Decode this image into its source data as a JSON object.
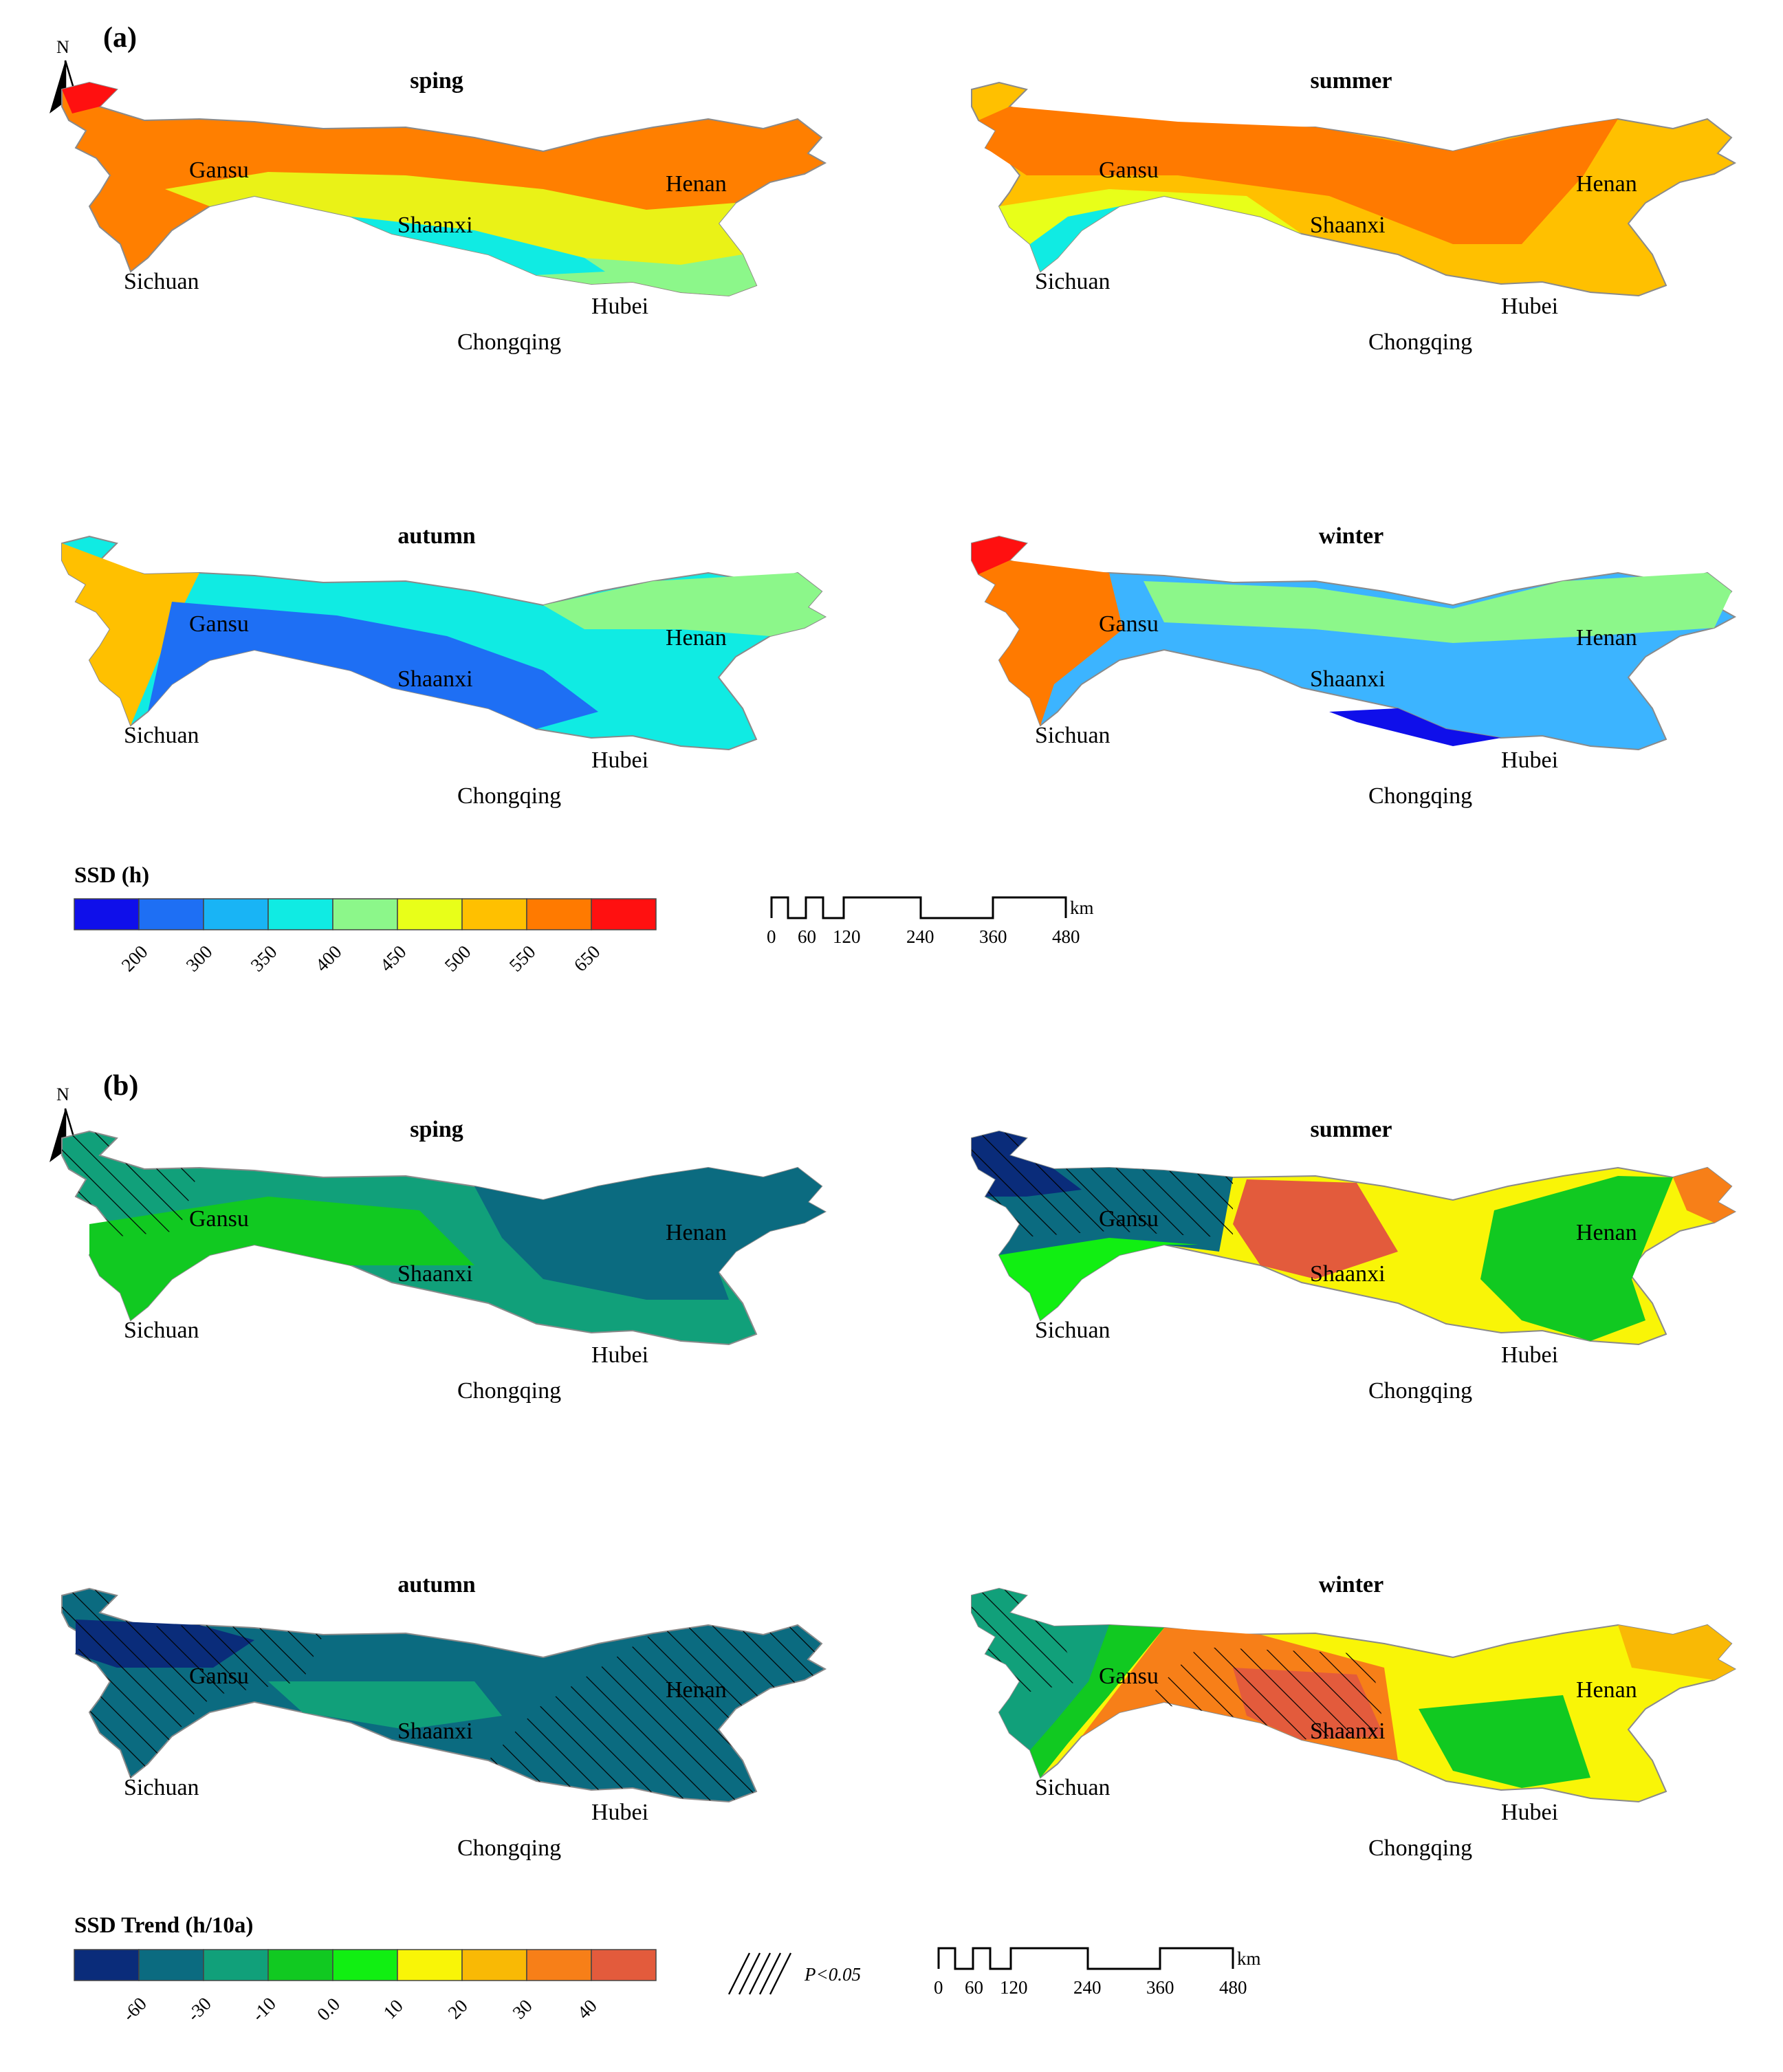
{
  "north_label": "N",
  "panel_a": {
    "label": "(a)",
    "maps": [
      {
        "season": "sping",
        "fill": "#ff7f00"
      },
      {
        "season": "summer",
        "fill": "#ff9400"
      },
      {
        "season": "autumn",
        "fill": "#28dce6"
      },
      {
        "season": "winter",
        "fill": "#3cb4ff"
      }
    ],
    "legend": {
      "title": "SSD (h)",
      "colors": [
        "#0f0fea",
        "#1e6ff4",
        "#19b4f5",
        "#10ebe3",
        "#8cf78a",
        "#e8ff19",
        "#ffc000",
        "#ff7a00",
        "#ff1010"
      ],
      "ticks": [
        "200",
        "300",
        "350",
        "400",
        "450",
        "500",
        "550",
        "650"
      ]
    },
    "scale_bar": {
      "unit": "km",
      "ticks": [
        "0",
        "60",
        "120",
        "240",
        "360",
        "480"
      ]
    }
  },
  "panel_b": {
    "label": "(b)",
    "maps": [
      {
        "season": "sping",
        "fill": "#0e9e79"
      },
      {
        "season": "summer",
        "fill": "#f5c000"
      },
      {
        "season": "autumn",
        "fill": "#0b6f7d"
      },
      {
        "season": "winter",
        "fill": "#f7b600"
      }
    ],
    "legend": {
      "title": "SSD Trend (h/10a)",
      "colors": [
        "#0a2c7a",
        "#0b6b80",
        "#11a07a",
        "#11c921",
        "#11ef12",
        "#f9f507",
        "#f9b905",
        "#f77f18",
        "#e35b3c"
      ],
      "ticks": [
        "-60",
        "-30",
        "-10",
        "0.0",
        "10",
        "20",
        "30",
        "40"
      ]
    },
    "significance_label": "P<0.05",
    "scale_bar": {
      "unit": "km",
      "ticks": [
        "0",
        "60",
        "120",
        "240",
        "360",
        "480"
      ]
    }
  },
  "provinces": [
    "Gansu",
    "Shaanxi",
    "Henan",
    "Sichuan",
    "Hubei",
    "Chongqing"
  ]
}
